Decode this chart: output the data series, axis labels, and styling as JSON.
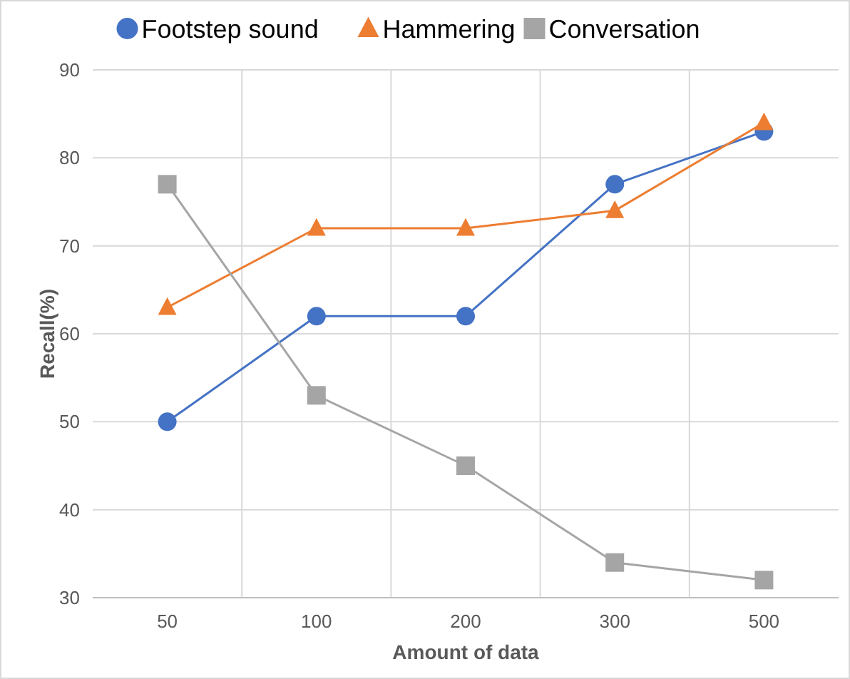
{
  "chart_data": {
    "type": "line",
    "xlabel": "Amount of data",
    "ylabel": "Recall(%)",
    "categories": [
      "50",
      "100",
      "200",
      "300",
      "500"
    ],
    "series": [
      {
        "name": "Footstep sound",
        "color": "#4472c4",
        "marker": "circle",
        "values": [
          50,
          62,
          62,
          77,
          83
        ]
      },
      {
        "name": "Hammering",
        "color": "#ed7d31",
        "marker": "triangle",
        "values": [
          63,
          72,
          72,
          74,
          84
        ]
      },
      {
        "name": "Conversation",
        "color": "#a5a5a5",
        "marker": "square",
        "values": [
          77,
          53,
          45,
          34,
          32
        ]
      }
    ],
    "ylim": [
      30,
      90
    ],
    "yticks": [
      30,
      40,
      50,
      60,
      70,
      80,
      90
    ],
    "grid": true,
    "legend": "top"
  }
}
